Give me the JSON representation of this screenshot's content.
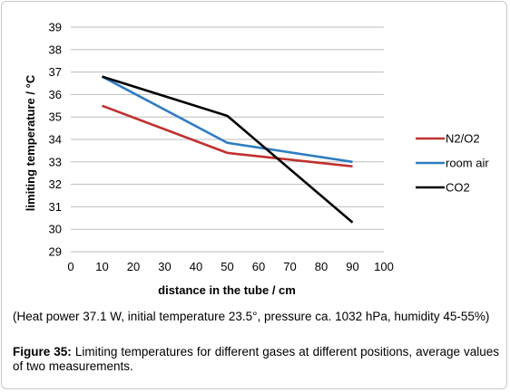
{
  "chart_data": {
    "type": "line",
    "x": [
      10,
      50,
      90
    ],
    "series": [
      {
        "name": "N2/O2",
        "color": "#c0312f",
        "values": [
          35.5,
          33.4,
          32.8
        ]
      },
      {
        "name": "room air",
        "color": "#2f7cc1",
        "values": [
          36.8,
          33.85,
          33.0
        ]
      },
      {
        "name": "CO2",
        "color": "#000000",
        "values": [
          36.8,
          35.05,
          30.3
        ]
      }
    ],
    "xlim": [
      0,
      100
    ],
    "ylim": [
      29,
      39
    ],
    "xticks": [
      "0",
      "10",
      "20",
      "30",
      "40",
      "50",
      "60",
      "70",
      "80",
      "90",
      "100"
    ],
    "yticks": [
      "29",
      "30",
      "31",
      "32",
      "33",
      "34",
      "35",
      "36",
      "37",
      "38",
      "39"
    ],
    "xlabel": "distance in the tube / cm",
    "ylabel": "limiting temperature / °C",
    "grid": "horizontal",
    "legend_position": "right"
  },
  "note": "(Heat power 37.1 W, initial temperature 23.5°, pressure ca. 1032 hPa, humidity 45-55%)",
  "caption": {
    "label": "Figure 35:",
    "text": " Limiting temperatures for different gases at different positions, average values of two measurements."
  }
}
